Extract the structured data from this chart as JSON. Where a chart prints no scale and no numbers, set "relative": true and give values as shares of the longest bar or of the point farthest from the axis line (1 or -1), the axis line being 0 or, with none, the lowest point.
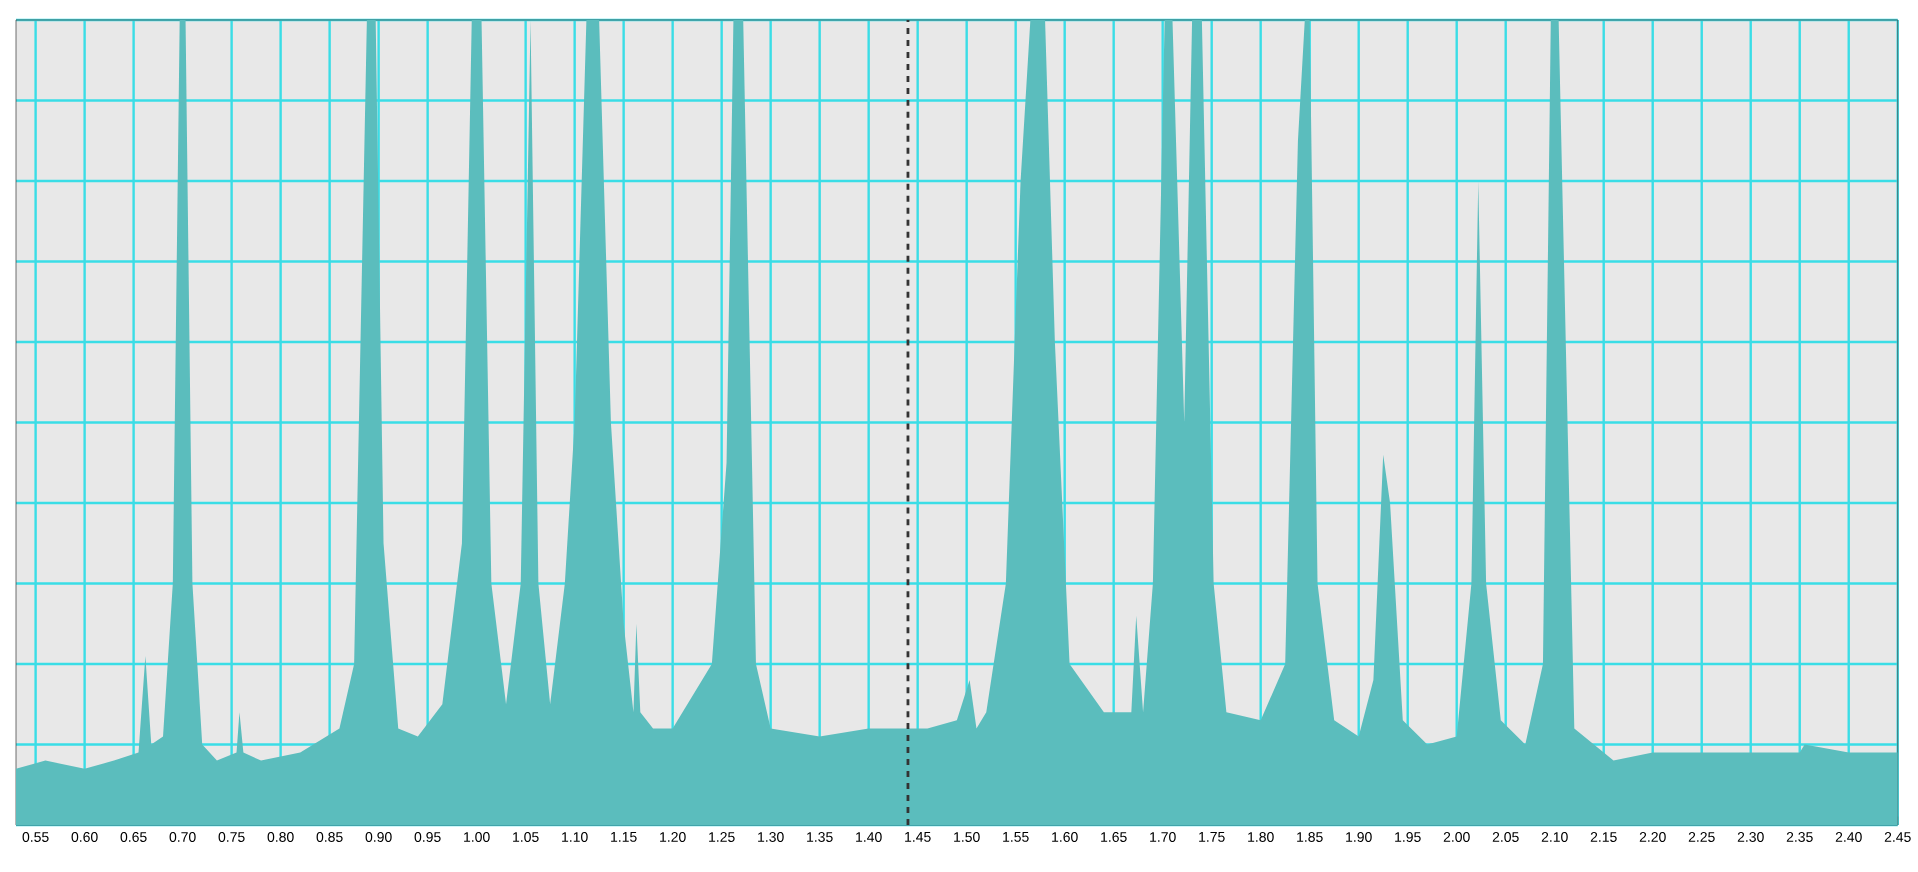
{
  "chart_data": {
    "type": "area",
    "relative": true,
    "color": "#5bbdbd",
    "grid": true,
    "tick_labels": "x",
    "x": [
      0.53,
      0.56,
      0.6,
      0.63,
      0.655,
      0.662,
      0.668,
      0.68,
      0.69,
      0.697,
      0.703,
      0.71,
      0.72,
      0.735,
      0.755,
      0.758,
      0.762,
      0.78,
      0.82,
      0.86,
      0.875,
      0.888,
      0.897,
      0.905,
      0.92,
      0.94,
      0.965,
      0.985,
      0.995,
      1.005,
      1.015,
      1.03,
      1.045,
      1.055,
      1.063,
      1.075,
      1.09,
      1.1,
      1.112,
      1.125,
      1.137,
      1.15,
      1.16,
      1.163,
      1.167,
      1.18,
      1.2,
      1.24,
      1.255,
      1.262,
      1.272,
      1.285,
      1.3,
      1.35,
      1.4,
      1.43,
      1.46,
      1.49,
      1.503,
      1.51,
      1.52,
      1.54,
      1.555,
      1.565,
      1.58,
      1.59,
      1.605,
      1.64,
      1.668,
      1.673,
      1.68,
      1.69,
      1.702,
      1.71,
      1.722,
      1.73,
      1.74,
      1.752,
      1.765,
      1.8,
      1.825,
      1.838,
      1.845,
      1.85,
      1.858,
      1.875,
      1.9,
      1.915,
      1.925,
      1.932,
      1.945,
      1.97,
      2.0,
      2.015,
      2.022,
      2.03,
      2.045,
      2.07,
      2.088,
      2.096,
      2.104,
      2.12,
      2.16,
      2.2,
      2.25,
      2.3,
      2.35,
      2.355,
      2.4,
      2.45
    ],
    "values": [
      0.07,
      0.08,
      0.07,
      0.08,
      0.09,
      0.21,
      0.1,
      0.11,
      0.3,
      1,
      1,
      0.3,
      0.1,
      0.08,
      0.09,
      0.14,
      0.09,
      0.08,
      0.09,
      0.12,
      0.2,
      1,
      1,
      0.35,
      0.12,
      0.11,
      0.15,
      0.35,
      1,
      1,
      0.3,
      0.15,
      0.3,
      1,
      0.3,
      0.15,
      0.3,
      0.5,
      1,
      1,
      0.5,
      0.25,
      0.14,
      0.25,
      0.14,
      0.12,
      0.12,
      0.2,
      0.45,
      1,
      1,
      0.2,
      0.12,
      0.11,
      0.12,
      0.12,
      0.12,
      0.13,
      0.18,
      0.12,
      0.14,
      0.3,
      0.8,
      1,
      1,
      0.6,
      0.2,
      0.14,
      0.14,
      0.26,
      0.14,
      0.3,
      1,
      1,
      0.5,
      1,
      1,
      0.3,
      0.14,
      0.13,
      0.2,
      0.85,
      1,
      1,
      0.3,
      0.13,
      0.11,
      0.18,
      0.46,
      0.4,
      0.13,
      0.1,
      0.11,
      0.3,
      0.8,
      0.3,
      0.13,
      0.1,
      0.2,
      1,
      1,
      0.12,
      0.08,
      0.09,
      0.09,
      0.09,
      0.09,
      0.1,
      0.09,
      0.09
    ],
    "xlim": [
      0.53,
      2.45
    ],
    "xticks": [
      0.55,
      {
        "value": 0.6,
        "label": "0.60"
      },
      0.65,
      {
        "value": 0.7,
        "label": "0.70"
      },
      0.75,
      {
        "value": 0.8,
        "label": "0.80"
      },
      0.85,
      {
        "value": 0.9,
        "label": "0.90"
      },
      0.95,
      {
        "value": 1,
        "label": "1.00"
      },
      1.05,
      {
        "value": 1.1,
        "label": "1.10"
      },
      1.15,
      {
        "value": 1.2,
        "label": "1.20"
      },
      1.25,
      {
        "value": 1.3,
        "label": "1.30"
      },
      1.35,
      {
        "value": 1.4,
        "label": "1.40"
      },
      1.45,
      {
        "value": 1.5,
        "label": "1.50"
      },
      1.55,
      {
        "value": 1.6,
        "label": "1.60"
      },
      1.65,
      {
        "value": 1.7,
        "label": "1.70"
      },
      1.75,
      {
        "value": 1.8,
        "label": "1.80"
      },
      1.85,
      {
        "value": 1.9,
        "label": "1.90"
      },
      1.95,
      {
        "value": 2,
        "label": "2.00"
      },
      2.05,
      {
        "value": 2.1,
        "label": "2.10"
      },
      2.15,
      {
        "value": 2.2,
        "label": "2.20"
      },
      2.25,
      {
        "value": 2.3,
        "label": "2.30"
      },
      2.35,
      {
        "value": 2.4,
        "label": "2.40"
      },
      2.45
    ],
    "ref_lines": [
      {
        "axis": "x",
        "value": 1.44,
        "color": "#333333",
        "line_style": "dashed"
      }
    ]
  }
}
